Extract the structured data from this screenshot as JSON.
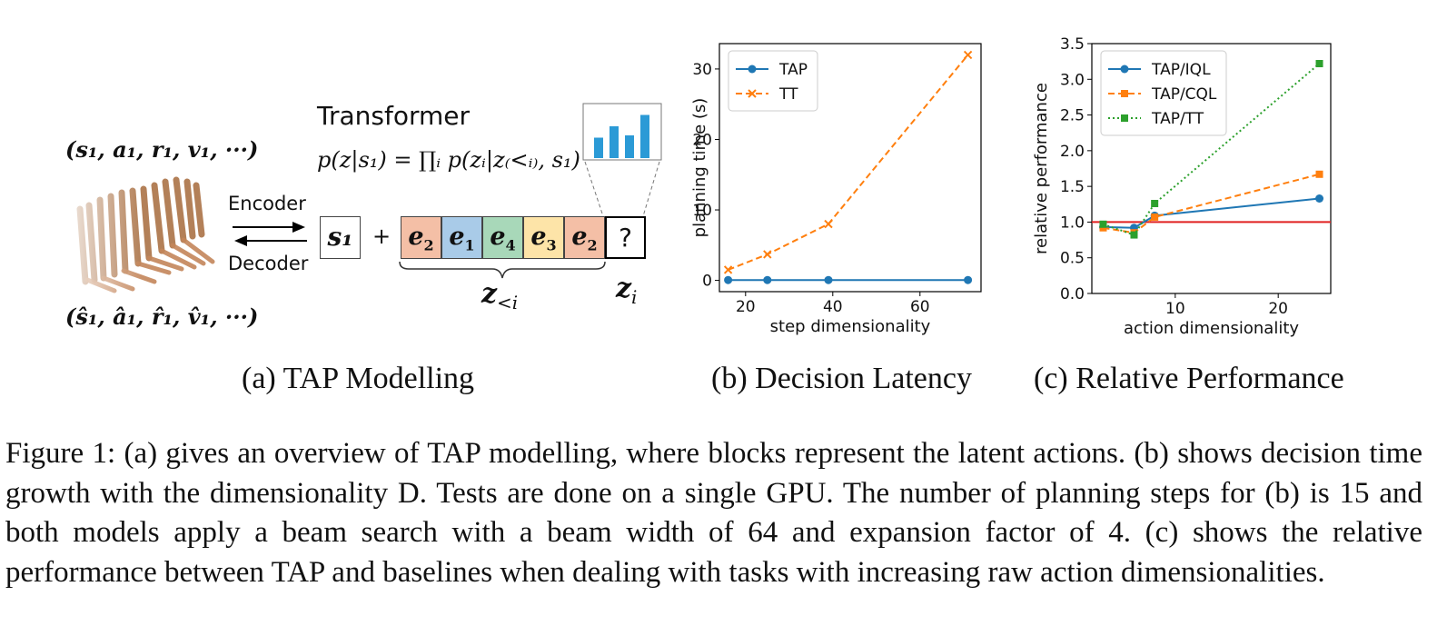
{
  "panel_a": {
    "transformer_label": "Transformer",
    "equation": "p(z|s₁) = ∏ᵢ p(zᵢ|z₍<ᵢ₎, s₁)",
    "input_tuple": "(s₁, a₁, r₁, v₁, ···)",
    "output_tuple": "(ŝ₁, â₁, r̂₁, v̂₁, ···)",
    "encoder_label": "Encoder",
    "decoder_label": "Decoder",
    "state_token": "s₁",
    "plus": "+",
    "tokens": [
      {
        "base": "e",
        "sub": "2",
        "color": "#f4bfa6"
      },
      {
        "base": "e",
        "sub": "1",
        "color": "#a9cbe8"
      },
      {
        "base": "e",
        "sub": "4",
        "color": "#a8d8b9"
      },
      {
        "base": "e",
        "sub": "3",
        "color": "#fde4a8"
      },
      {
        "base": "e",
        "sub": "2",
        "color": "#f4bfa6"
      }
    ],
    "query_token": "?",
    "z_less_label": "z<i",
    "z_i_label": "zi",
    "mini_bars": [
      0.45,
      0.7,
      0.5,
      0.95
    ]
  },
  "subcaptions": {
    "a": "(a) TAP Modelling",
    "b": "(b) Decision Latency",
    "c": "(c) Relative Performance"
  },
  "caption": "Figure 1: (a) gives an overview of TAP modelling, where blocks represent the latent actions. (b) shows decision time growth with the dimensionality D. Tests are done on a single GPU. The number of planning steps for (b) is 15 and both models apply a beam search with a beam width of 64 and expansion factor of 4. (c) shows the relative performance between TAP and baselines when dealing with tasks with increasing raw action dimensionalities.",
  "chart_data": [
    {
      "type": "line",
      "xlabel": "step dimensionality",
      "ylabel": "planning time (s)",
      "xlim": [
        14,
        74
      ],
      "ylim": [
        -1.6,
        33.6
      ],
      "xticks": [
        20,
        40,
        60
      ],
      "yticks": [
        0,
        10,
        20,
        30
      ],
      "legend": "top-left",
      "grid": false,
      "series": [
        {
          "name": "TAP",
          "x": [
            16,
            25,
            39,
            71
          ],
          "y": [
            0.05,
            0.05,
            0.05,
            0.05
          ],
          "color": "#1f77b4",
          "marker": "circle",
          "linestyle": "solid"
        },
        {
          "name": "TT",
          "x": [
            16,
            25,
            39,
            71
          ],
          "y": [
            1.5,
            3.7,
            8.0,
            32.0
          ],
          "color": "#ff7f0e",
          "marker": "x",
          "linestyle": "dashed"
        }
      ]
    },
    {
      "type": "line",
      "xlabel": "action dimensionality",
      "ylabel": "relative performance",
      "xlim": [
        1.9,
        25.1
      ],
      "ylim": [
        0.0,
        3.5
      ],
      "xticks": [
        10,
        20
      ],
      "yticks": [
        0.0,
        0.5,
        1.0,
        1.5,
        2.0,
        2.5,
        3.0,
        3.5
      ],
      "reference_line": {
        "y": 1.0,
        "color": "#e02020"
      },
      "legend": "top-left",
      "grid": false,
      "series": [
        {
          "name": "TAP/IQL",
          "x": [
            3,
            6,
            8,
            24
          ],
          "y": [
            0.93,
            0.92,
            1.09,
            1.33
          ],
          "color": "#1f77b4",
          "marker": "circle",
          "linestyle": "solid"
        },
        {
          "name": "TAP/CQL",
          "x": [
            3,
            6,
            8,
            24
          ],
          "y": [
            0.92,
            0.85,
            1.07,
            1.67
          ],
          "color": "#ff7f0e",
          "marker": "square",
          "linestyle": "dashed"
        },
        {
          "name": "TAP/TT",
          "x": [
            3,
            6,
            8,
            24
          ],
          "y": [
            0.97,
            0.82,
            1.26,
            3.22
          ],
          "color": "#2ca02c",
          "marker": "square",
          "linestyle": "dotted"
        }
      ]
    }
  ]
}
